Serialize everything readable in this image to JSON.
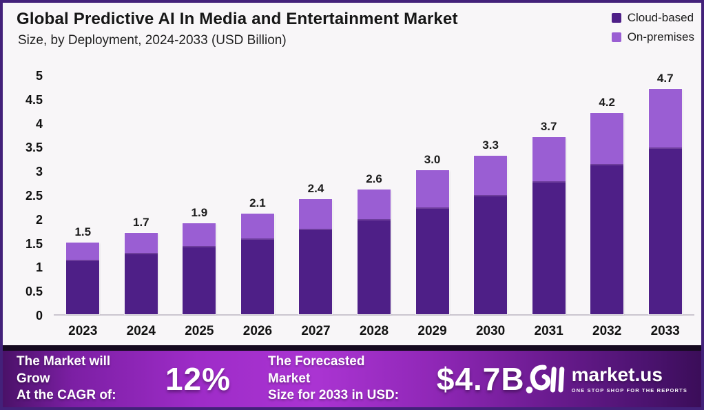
{
  "header": {
    "title": "Global Predictive AI In Media and Entertainment Market",
    "subtitle": "Size, by Deployment, 2024-2033 (USD Billion)"
  },
  "legend": [
    {
      "label": "Cloud-based",
      "color": "#4e1f87"
    },
    {
      "label": "On-premises",
      "color": "#9a5ed3"
    }
  ],
  "chart_data": {
    "type": "bar",
    "stacked": true,
    "title": "Global Predictive AI In Media and Entertainment Market Size, by Deployment, 2024-2033 (USD Billion)",
    "xlabel": "",
    "ylabel": "USD Billion",
    "ylim": [
      0,
      5
    ],
    "yticks": [
      0,
      0.5,
      1,
      1.5,
      2,
      2.5,
      3,
      3.5,
      4,
      4.5,
      5
    ],
    "ytick_labels": [
      "0",
      "0.5",
      "1",
      "1.5",
      "2",
      "2.5",
      "3",
      "3.5",
      "4",
      "4.5",
      "5"
    ],
    "grid": false,
    "legend_position": "top-right",
    "categories": [
      "2023",
      "2024",
      "2025",
      "2026",
      "2027",
      "2028",
      "2029",
      "2030",
      "2031",
      "2032",
      "2033"
    ],
    "series": [
      {
        "name": "Cloud-based",
        "color": "#4e1f87",
        "values": [
          1.1,
          1.25,
          1.4,
          1.55,
          1.75,
          1.95,
          2.2,
          2.45,
          2.75,
          3.1,
          3.45
        ]
      },
      {
        "name": "On-premises",
        "color": "#9a5ed3",
        "values": [
          0.4,
          0.45,
          0.5,
          0.55,
          0.65,
          0.65,
          0.8,
          0.85,
          0.95,
          1.1,
          1.25
        ]
      }
    ],
    "total_labels": [
      "1.5",
      "1.7",
      "1.9",
      "2.1",
      "2.4",
      "2.6",
      "3.0",
      "3.3",
      "3.7",
      "4.2",
      "4.7"
    ]
  },
  "footer": {
    "cagr_label_line1": "The Market will Grow",
    "cagr_label_line2": "At the CAGR of:",
    "cagr_value": "12%",
    "forecast_label_line1": "The Forecasted Market",
    "forecast_label_line2": "Size for 2033 in USD:",
    "forecast_value": "$4.7B",
    "brand_name": "market.us",
    "brand_tagline": "ONE STOP SHOP FOR THE REPORTS"
  },
  "colors": {
    "page_border": "#43217a",
    "background": "#f8f6f8",
    "cloud_based": "#4e1f87",
    "on_premises": "#9a5ed3",
    "banner_left": "#4a1168",
    "banner_center": "#aa34d2",
    "banner_right": "#3b0d59",
    "banner_top_strip": "#150a20",
    "baseline": "#cbc6cf",
    "text_dark": "#161616",
    "banner_text": "#ffffff"
  }
}
